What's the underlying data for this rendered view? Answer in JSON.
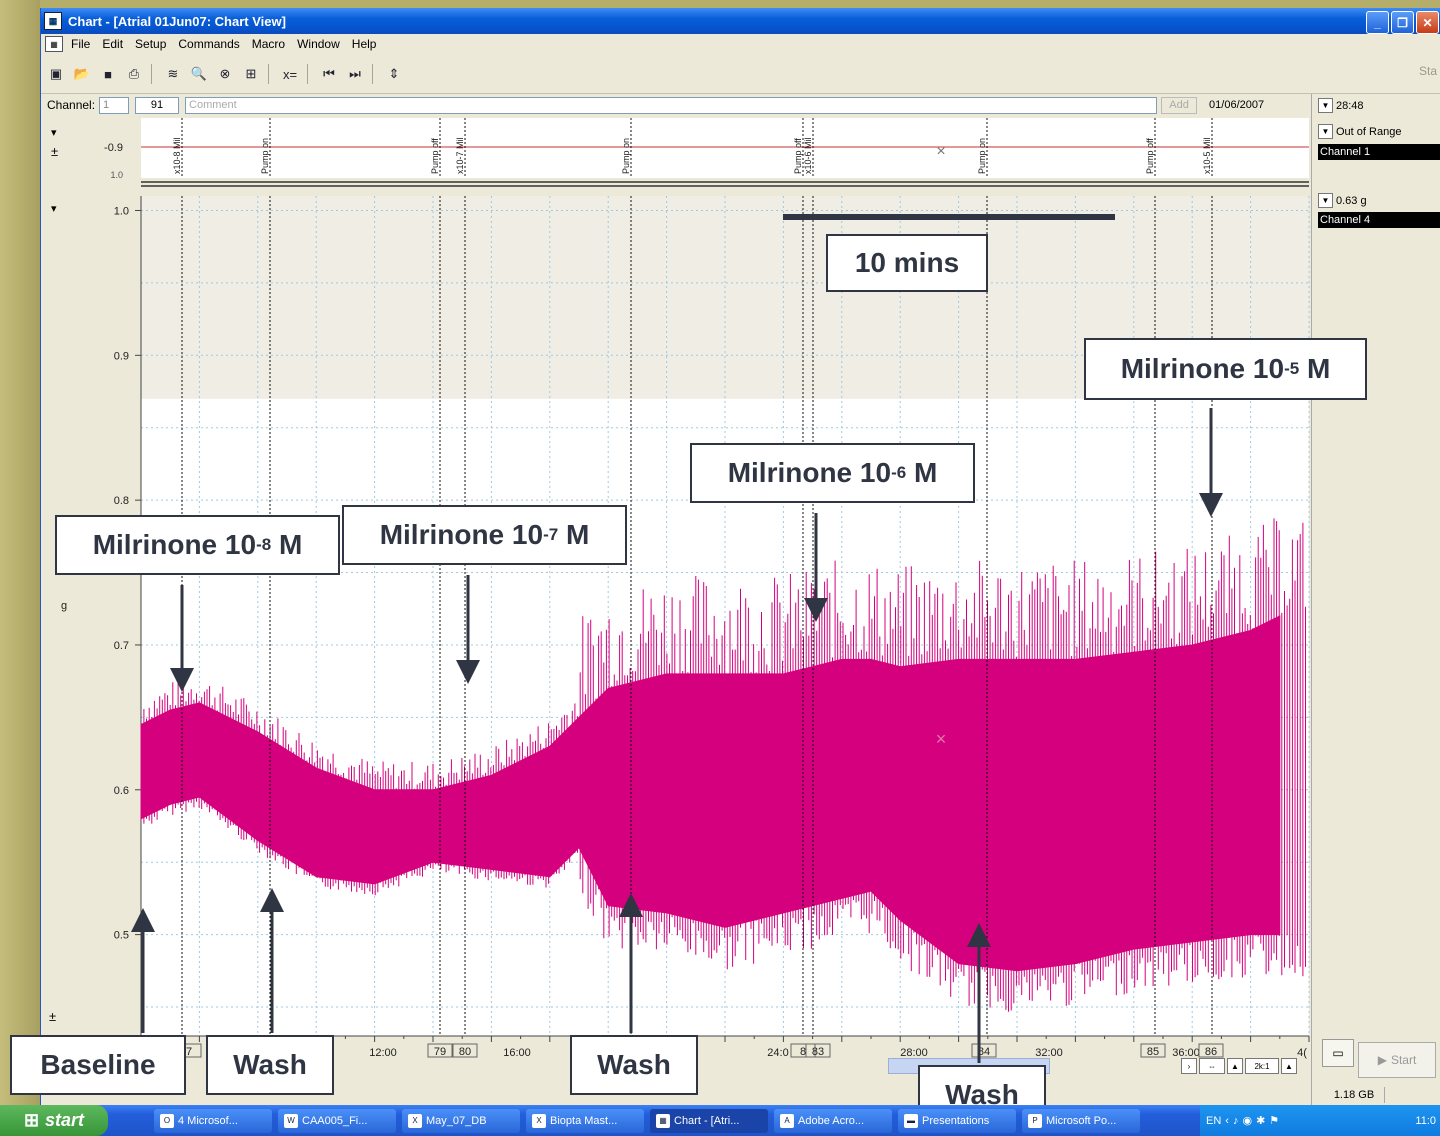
{
  "window": {
    "title": "Chart - [Atrial 01Jun07: Chart View]",
    "menu": [
      "File",
      "Edit",
      "Setup",
      "Commands",
      "Macro",
      "Window",
      "Help"
    ],
    "start_right": "Sta"
  },
  "channel_bar": {
    "label": "Channel:",
    "channel_value": "1",
    "block": "91",
    "comment_placeholder": "Comment",
    "add_label": "Add",
    "date": "01/06/2007",
    "time": "28:48"
  },
  "top_strip": {
    "y_tick": "-0.9",
    "y_tick_below": "1.0",
    "markers": [
      "x10-8 Mil",
      "Pump on",
      "Pump off",
      "x10-7 Mil",
      "Pump on",
      "Pump off",
      "x10-6 Mil",
      "Pump on",
      "Pump off",
      "x10-5 Mil"
    ]
  },
  "right_panel": {
    "ch1_status": "Out of Range",
    "ch1_name": "Channel 1",
    "ch4_value": "0.63 g",
    "ch4_name": "Channel 4",
    "disk": "1.18 GB",
    "start_label": "Start",
    "zoom": "2k:1"
  },
  "chart_data": {
    "type": "line",
    "ylabel": "g",
    "y_ticks": [
      "1.0",
      "0.9",
      "0.8",
      "0.7",
      "0.6",
      "0.5"
    ],
    "ylim": [
      0.43,
      1.01
    ],
    "x_tick_labels": [
      "12:00",
      "16:00",
      "24:0",
      "28:00",
      "32:00",
      "36:00",
      "4("
    ],
    "block_numbers": [
      "7",
      "79",
      "80",
      "8",
      "83",
      "84",
      "85",
      "86"
    ],
    "series": [
      {
        "color": "#d4007e",
        "envelope_x_minutes": [
          0,
          1,
          2,
          4,
          6,
          8,
          10,
          12,
          14,
          15,
          16,
          18,
          20,
          22,
          23,
          24,
          25,
          26,
          28,
          30,
          32,
          34,
          36,
          38,
          39
        ],
        "upper_g": [
          0.645,
          0.655,
          0.66,
          0.64,
          0.615,
          0.6,
          0.6,
          0.61,
          0.63,
          0.65,
          0.67,
          0.68,
          0.68,
          0.68,
          0.685,
          0.69,
          0.69,
          0.685,
          0.69,
          0.69,
          0.69,
          0.695,
          0.7,
          0.71,
          0.72
        ],
        "lower_g": [
          0.58,
          0.59,
          0.595,
          0.565,
          0.54,
          0.535,
          0.55,
          0.545,
          0.54,
          0.56,
          0.52,
          0.515,
          0.505,
          0.515,
          0.52,
          0.525,
          0.53,
          0.51,
          0.48,
          0.475,
          0.48,
          0.49,
          0.495,
          0.5,
          0.5
        ]
      }
    ]
  },
  "annotations": {
    "scale_bar": "10 mins",
    "milrinone_8": {
      "text": "Milrinone 10",
      "exp": "-8",
      "unit": " M"
    },
    "milrinone_7": {
      "text": "Milrinone 10",
      "exp": "-7",
      "unit": " M"
    },
    "milrinone_6": {
      "text": "Milrinone 10",
      "exp": "-6",
      "unit": " M"
    },
    "milrinone_5": {
      "text": "Milrinone 10",
      "exp": "-5",
      "unit": " M"
    },
    "baseline": "Baseline",
    "wash1": "Wash",
    "wash2": "Wash",
    "wash3": "Wash"
  },
  "taskbar": {
    "start": "start",
    "tasks": [
      "4 Microsof...",
      "CAA005_Fi...",
      "May_07_DB",
      "Biopta Mast...",
      "Chart - [Atri...",
      "Adobe Acro...",
      "Presentations",
      "Microsoft Po..."
    ],
    "lang": "EN",
    "clock": "11:0"
  }
}
